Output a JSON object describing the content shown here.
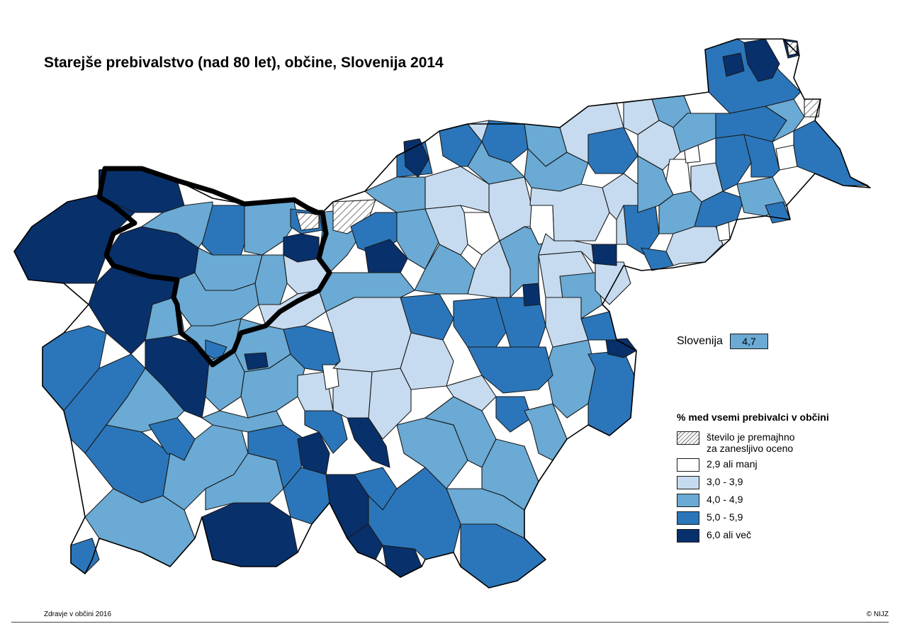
{
  "title": "Starejše prebivalstvo (nad 80 let), občine, Slovenija 2014",
  "national": {
    "label": "Slovenija",
    "value": "4,7",
    "color": "#6aaad4"
  },
  "legend": {
    "title": "% med vsemi prebivalci v občini",
    "items": [
      {
        "label": "število je premajhno za zanesljivo oceno",
        "line1": "število je premajhno",
        "line2": "za zanesljivo oceno",
        "pattern": "hatch"
      },
      {
        "label": "2,9 ali manj",
        "color": "#ffffff"
      },
      {
        "label": "3,0 - 3,9",
        "color": "#c6dbef"
      },
      {
        "label": "4,0 - 4,9",
        "color": "#6aaad4"
      },
      {
        "label": "5,0 - 5,9",
        "color": "#2b76ba"
      },
      {
        "label": "6,0 ali več",
        "color": "#08306b"
      }
    ]
  },
  "footer": {
    "left": "Zdravje v občini 2016",
    "right": "© NIJZ"
  }
}
